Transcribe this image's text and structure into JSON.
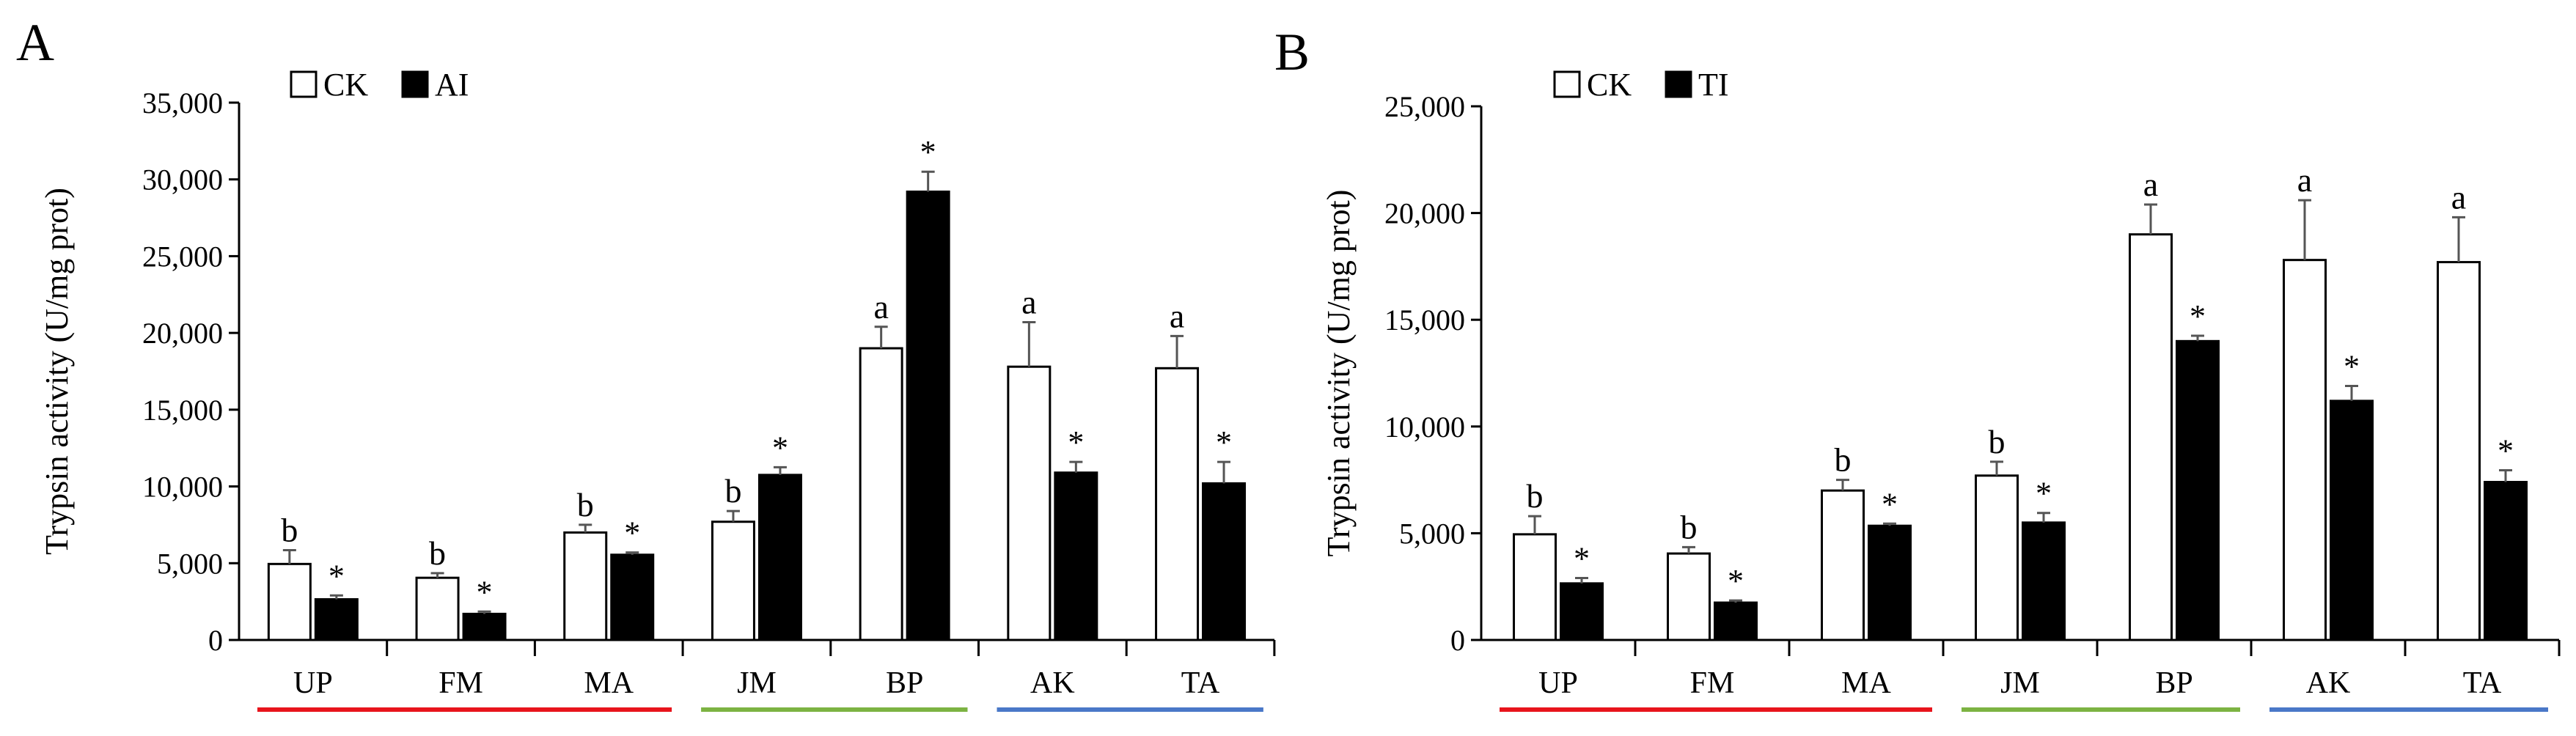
{
  "chart_data": [
    {
      "type": "bar",
      "panel_label": "A",
      "categories": [
        "UP",
        "FM",
        "MA",
        "JM",
        "BP",
        "AK",
        "TA"
      ],
      "category_groups": [
        {
          "members": [
            "UP",
            "FM",
            "MA"
          ],
          "color": "#e8141c"
        },
        {
          "members": [
            "JM",
            "BP"
          ],
          "color": "#7cb342"
        },
        {
          "members": [
            "AK",
            "TA"
          ],
          "color": "#4a78c8"
        }
      ],
      "series": [
        {
          "name": "CK",
          "fill": "#ffffff",
          "values": [
            4950,
            4050,
            7000,
            7700,
            19000,
            17800,
            17700
          ],
          "errors": [
            900,
            300,
            500,
            700,
            1400,
            2900,
            2100
          ],
          "labels": [
            "b",
            "b",
            "b",
            "b",
            "a",
            "a",
            "a"
          ]
        },
        {
          "name": "AI",
          "fill": "#000000",
          "values": [
            2650,
            1700,
            5550,
            10750,
            29200,
            10900,
            10200
          ],
          "errors": [
            250,
            150,
            150,
            500,
            1300,
            700,
            1400
          ],
          "labels": [
            "*",
            "*",
            "*",
            "*",
            "*",
            "*",
            "*"
          ]
        }
      ],
      "ylabel": "Trypsin activity (U/mg prot)",
      "xlabel": "",
      "ylim": [
        0,
        35000
      ],
      "yticks": [
        0,
        5000,
        10000,
        15000,
        20000,
        25000,
        30000,
        35000
      ],
      "ytick_labels": [
        "0",
        "5,000",
        "10,000",
        "15,000",
        "20,000",
        "25,000",
        "30,000",
        "35,000"
      ],
      "legend": "top-left",
      "grid": false
    },
    {
      "type": "bar",
      "panel_label": "B",
      "categories": [
        "UP",
        "FM",
        "MA",
        "JM",
        "BP",
        "AK",
        "TA"
      ],
      "category_groups": [
        {
          "members": [
            "UP",
            "FM",
            "MA"
          ],
          "color": "#e8141c"
        },
        {
          "members": [
            "JM",
            "BP"
          ],
          "color": "#7cb342"
        },
        {
          "members": [
            "AK",
            "TA"
          ],
          "color": "#4a78c8"
        }
      ],
      "series": [
        {
          "name": "CK",
          "fill": "#ffffff",
          "values": [
            4950,
            4050,
            7000,
            7700,
            19000,
            17800,
            17700
          ],
          "errors": [
            850,
            300,
            500,
            650,
            1400,
            2800,
            2100
          ],
          "labels": [
            "b",
            "b",
            "b",
            "b",
            "a",
            "a",
            "a"
          ]
        },
        {
          "name": "TI",
          "fill": "#000000",
          "values": [
            2650,
            1750,
            5350,
            5500,
            14000,
            11200,
            7400
          ],
          "errors": [
            250,
            100,
            100,
            450,
            250,
            700,
            550
          ],
          "labels": [
            "*",
            "*",
            "*",
            "*",
            "*",
            "*",
            "*"
          ]
        }
      ],
      "ylabel": "Trypsin activity (U/mg prot)",
      "xlabel": "",
      "ylim": [
        0,
        25000
      ],
      "yticks": [
        0,
        5000,
        10000,
        15000,
        20000,
        25000
      ],
      "ytick_labels": [
        "0",
        "5,000",
        "10,000",
        "15,000",
        "20,000",
        "25,000"
      ],
      "legend": "top-left",
      "grid": false
    }
  ]
}
